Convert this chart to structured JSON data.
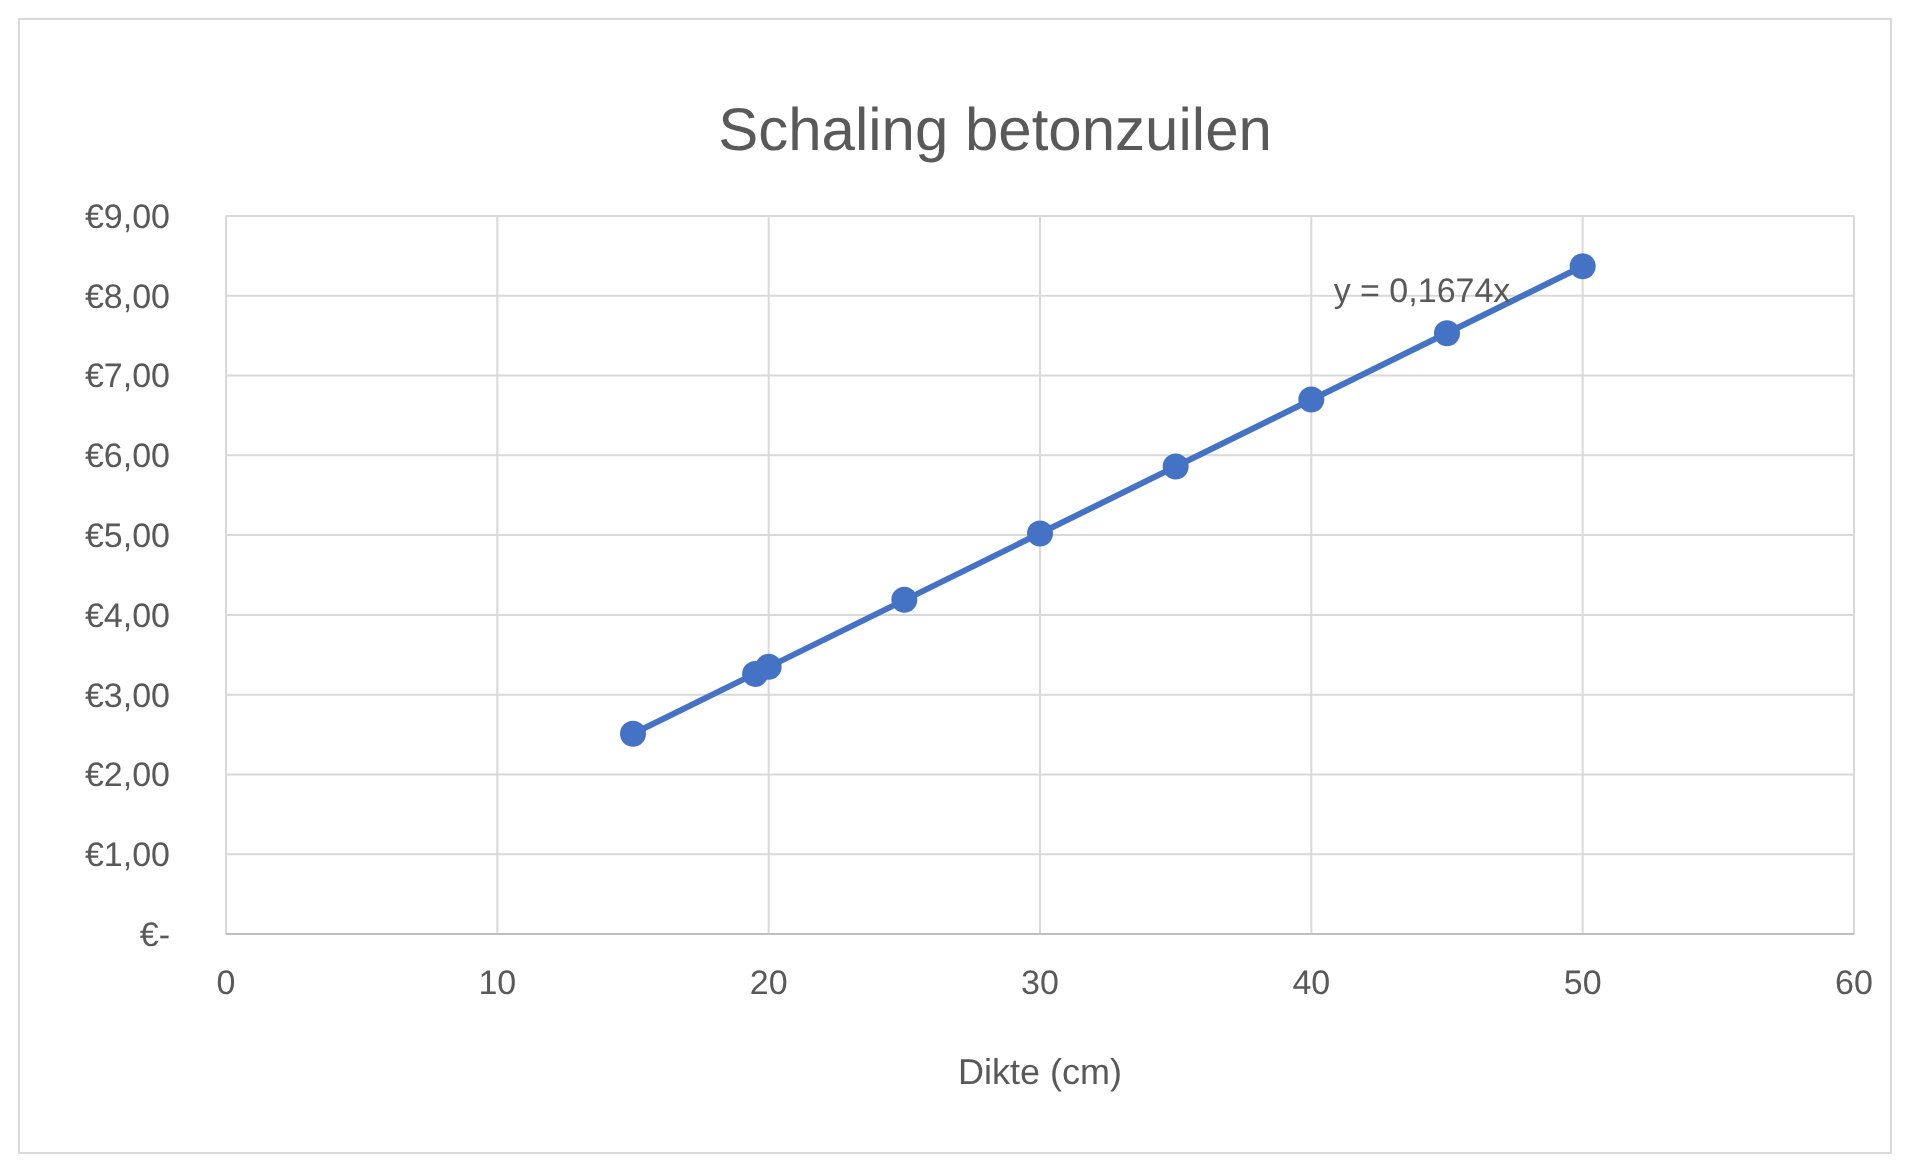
{
  "chart_data": {
    "type": "scatter",
    "title": "Schaling betonzuilen",
    "xlabel": "Dikte (cm)",
    "xlim": [
      0,
      60
    ],
    "xticks": [
      0,
      10,
      20,
      30,
      40,
      50,
      60
    ],
    "ylim": [
      0,
      9
    ],
    "yticks": [
      {
        "value": 0,
        "label": "€-"
      },
      {
        "value": 1,
        "label": "€1,00"
      },
      {
        "value": 2,
        "label": "€2,00"
      },
      {
        "value": 3,
        "label": "€3,00"
      },
      {
        "value": 4,
        "label": "€4,00"
      },
      {
        "value": 5,
        "label": "€5,00"
      },
      {
        "value": 6,
        "label": "€6,00"
      },
      {
        "value": 7,
        "label": "€7,00"
      },
      {
        "value": 8,
        "label": "€8,00"
      },
      {
        "value": 9,
        "label": "€9,00"
      }
    ],
    "grid": true,
    "series": [
      {
        "marker": "circle",
        "color": "#4472c4",
        "x": [
          15,
          19.5,
          20,
          25,
          30,
          35,
          40,
          45,
          50
        ],
        "values": [
          2.51,
          3.26,
          3.35,
          4.19,
          5.02,
          5.86,
          6.7,
          7.53,
          8.37
        ]
      },
      {
        "type": "line",
        "marker": "none",
        "color": "#4472c4",
        "x": [
          15,
          50
        ],
        "values": [
          2.51,
          8.37
        ]
      }
    ],
    "annotations": [
      "y = 0,1674x"
    ]
  }
}
